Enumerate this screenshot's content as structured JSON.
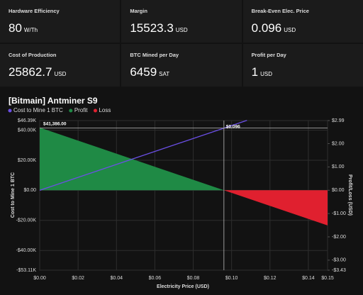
{
  "stats": [
    {
      "label": "Hardware Efficiency",
      "value": 80,
      "unit": "W/Th"
    },
    {
      "label": "Margin",
      "value": 15523.3,
      "unit": "USD"
    },
    {
      "label": "Break-Even Elec. Price",
      "value": 0.096,
      "unit": "USD"
    },
    {
      "label": "Cost of Production",
      "value": 25862.7,
      "unit": "USD"
    },
    {
      "label": "BTC Mined per Day",
      "value": 6459,
      "unit": "SAT"
    },
    {
      "label": "Profit per Day",
      "value": 1,
      "unit": "USD"
    }
  ],
  "chart_data": {
    "type": "line",
    "title": "[Bitmain] Antminer S9",
    "xlabel": "Electricity Price (USD)",
    "ylabel": "Cost to Mine 1 BTC",
    "y2label": "Profit/Loss (USD)",
    "xlim": [
      0,
      0.15
    ],
    "ylim": [
      -53110,
      46390
    ],
    "y2lim": [
      -3.43,
      2.99
    ],
    "grid": true,
    "xticks": [
      {
        "value": 0,
        "label": "$0.00"
      },
      {
        "value": 0.02,
        "label": "$0.02"
      },
      {
        "value": 0.04,
        "label": "$0.04"
      },
      {
        "value": 0.06,
        "label": "$0.06"
      },
      {
        "value": 0.08,
        "label": "$0.08"
      },
      {
        "value": 0.1,
        "label": "$0.10"
      },
      {
        "value": 0.12,
        "label": "$0.12"
      },
      {
        "value": 0.14,
        "label": "$0.14"
      },
      {
        "value": 0.15,
        "label": "$0.15"
      }
    ],
    "yticks": [
      {
        "value": -53110,
        "label": "-$53.11K"
      },
      {
        "value": -40000,
        "label": "-$40.00K"
      },
      {
        "value": -20000,
        "label": "-$20.00K"
      },
      {
        "value": 0,
        "label": "$0.00"
      },
      {
        "value": 20000,
        "label": "$20.00K"
      },
      {
        "value": 40000,
        "label": "$40.00K"
      },
      {
        "value": 46390,
        "label": "$46.39K"
      }
    ],
    "y2ticks": [
      {
        "value": -3.43,
        "label": "-$3.43"
      },
      {
        "value": -3,
        "label": "-$3.00"
      },
      {
        "value": -2,
        "label": "-$2.00"
      },
      {
        "value": -1,
        "label": "-$1.00"
      },
      {
        "value": 0,
        "label": "$0.00"
      },
      {
        "value": 1,
        "label": "$1.00"
      },
      {
        "value": 2,
        "label": "$2.00"
      },
      {
        "value": 2.99,
        "label": "$2.99"
      }
    ],
    "series": [
      {
        "name": "Cost to Mine 1 BTC",
        "color": "#6b4fe6",
        "type": "line",
        "axis": "y",
        "x": [
          0,
          0.108
        ],
        "values": [
          0,
          46500
        ]
      },
      {
        "name": "Profit",
        "color": "#1f8a45",
        "type": "area",
        "axis": "y2",
        "x": [
          0,
          0.096
        ],
        "values": [
          2.69,
          0
        ]
      },
      {
        "name": "Loss",
        "color": "#e0202f",
        "type": "area",
        "axis": "y2",
        "x": [
          0.096,
          0.15
        ],
        "values": [
          0,
          -1.51
        ]
      }
    ],
    "crosshair": {
      "x": 0.096,
      "y": 41386,
      "x_label": "$0.096",
      "y_label": "$41,386.00"
    }
  }
}
